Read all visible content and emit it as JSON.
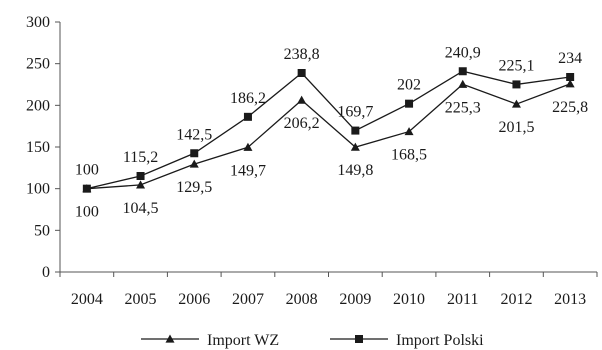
{
  "chart_data": {
    "type": "line",
    "categories": [
      "2004",
      "2005",
      "2006",
      "2007",
      "2008",
      "2009",
      "2010",
      "2011",
      "2012",
      "2013"
    ],
    "ylim": [
      0,
      300
    ],
    "yticks": [
      0,
      50,
      100,
      150,
      200,
      250,
      300
    ],
    "ytick_labels": [
      "0",
      "50",
      "100",
      "150",
      "200",
      "250",
      "300"
    ],
    "grid": false,
    "legend_position": "bottom",
    "series": [
      {
        "name": "Import WZ",
        "marker": "triangle",
        "values": [
          100,
          104.5,
          129.5,
          149.7,
          206.2,
          149.8,
          168.5,
          225.3,
          201.5,
          225.8
        ],
        "value_labels": [
          "100",
          "104,5",
          "129,5",
          "149,7",
          "206,2",
          "149,8",
          "168,5",
          "225,3",
          "201,5",
          "225,8"
        ]
      },
      {
        "name": "Import Polski",
        "marker": "square",
        "values": [
          100,
          115.2,
          142.5,
          186.2,
          238.8,
          169.7,
          202,
          240.9,
          225.1,
          234
        ],
        "value_labels": [
          "100",
          "115,2",
          "142,5",
          "186,2",
          "238,8",
          "169,7",
          "202",
          "240,9",
          "225,1",
          "234"
        ]
      }
    ]
  }
}
